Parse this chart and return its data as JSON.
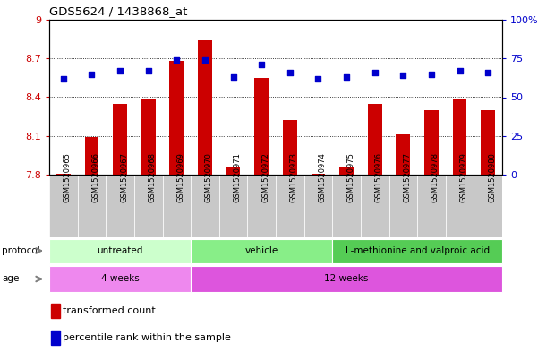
{
  "title": "GDS5624 / 1438868_at",
  "samples": [
    "GSM1520965",
    "GSM1520966",
    "GSM1520967",
    "GSM1520968",
    "GSM1520969",
    "GSM1520970",
    "GSM1520971",
    "GSM1520972",
    "GSM1520973",
    "GSM1520974",
    "GSM1520975",
    "GSM1520976",
    "GSM1520977",
    "GSM1520978",
    "GSM1520979",
    "GSM1520980"
  ],
  "bar_values": [
    7.81,
    8.09,
    8.35,
    8.39,
    8.68,
    8.84,
    7.86,
    8.55,
    8.22,
    7.81,
    7.86,
    8.35,
    8.11,
    8.3,
    8.39,
    8.3
  ],
  "dot_values": [
    62,
    65,
    67,
    67,
    74,
    74,
    63,
    71,
    66,
    62,
    63,
    66,
    64,
    65,
    67,
    66
  ],
  "ylim_left": [
    7.8,
    9.0
  ],
  "ylim_right": [
    0,
    100
  ],
  "yticks_left": [
    7.8,
    8.1,
    8.4,
    8.7,
    9.0
  ],
  "yticks_right": [
    0,
    25,
    50,
    75,
    100
  ],
  "ytick_labels_left": [
    "7.8",
    "8.1",
    "8.4",
    "8.7",
    "9"
  ],
  "ytick_labels_right": [
    "0",
    "25",
    "50",
    "75",
    "100%"
  ],
  "bar_color": "#cc0000",
  "dot_color": "#0000cc",
  "xtick_bg_color": "#cccccc",
  "protocol_groups": [
    {
      "label": "untreated",
      "start": 0,
      "end": 4,
      "color": "#ccffcc"
    },
    {
      "label": "vehicle",
      "start": 5,
      "end": 9,
      "color": "#88ee88"
    },
    {
      "label": "L-methionine and valproic acid",
      "start": 10,
      "end": 15,
      "color": "#55cc55"
    }
  ],
  "age_groups": [
    {
      "label": "4 weeks",
      "start": 0,
      "end": 4,
      "color": "#ee88ee"
    },
    {
      "label": "12 weeks",
      "start": 5,
      "end": 15,
      "color": "#dd55dd"
    }
  ],
  "legend_bar_label": "transformed count",
  "legend_dot_label": "percentile rank within the sample",
  "tick_color_left": "#cc0000",
  "tick_color_right": "#0000cc"
}
